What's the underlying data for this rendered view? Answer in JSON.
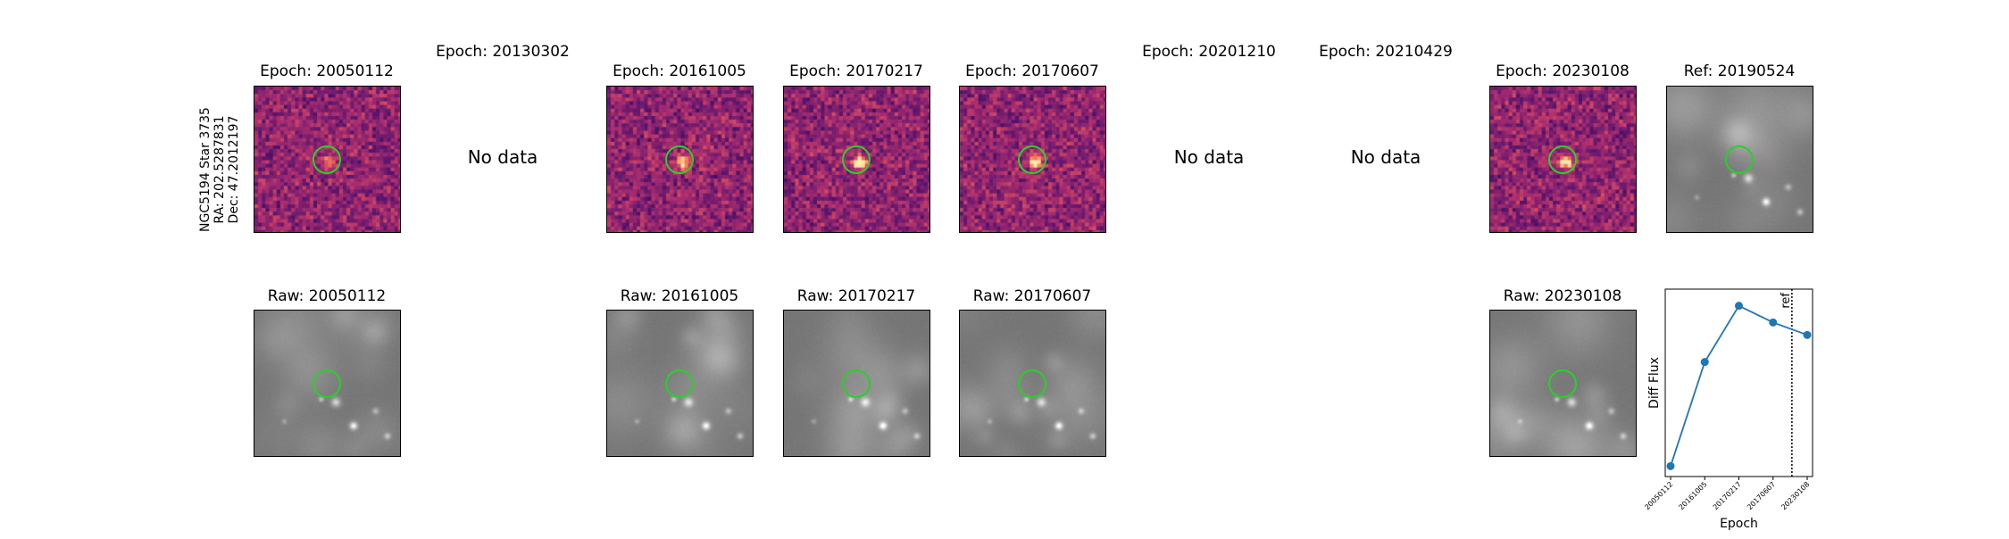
{
  "star_label": {
    "name": "NGC5194 Star 3735",
    "ra": "RA: 202.5287831",
    "dec": "Dec: 47.2012197"
  },
  "diff_row": [
    {
      "title": "Epoch: 20050112",
      "has_data": true,
      "intensity": 0.55
    },
    {
      "title": "Epoch: 20130302",
      "has_data": false,
      "no_data_text": "No data"
    },
    {
      "title": "Epoch: 20161005",
      "has_data": true,
      "intensity": 0.75
    },
    {
      "title": "Epoch: 20170217",
      "has_data": true,
      "intensity": 1.0
    },
    {
      "title": "Epoch: 20170607",
      "has_data": true,
      "intensity": 0.9
    },
    {
      "title": "Epoch: 20201210",
      "has_data": false,
      "no_data_text": "No data"
    },
    {
      "title": "Epoch: 20210429",
      "has_data": false,
      "no_data_text": "No data"
    },
    {
      "title": "Epoch: 20230108",
      "has_data": true,
      "intensity": 0.8
    }
  ],
  "ref_panel": {
    "title": "Ref: 20190524"
  },
  "raw_row": [
    {
      "title": "Raw: 20050112",
      "slot": 0
    },
    {
      "title": "Raw: 20161005",
      "slot": 2
    },
    {
      "title": "Raw: 20170217",
      "slot": 3
    },
    {
      "title": "Raw: 20170607",
      "slot": 4
    },
    {
      "title": "Raw: 20230108",
      "slot": 7
    }
  ],
  "chart_data": {
    "type": "line",
    "title": "",
    "xlabel": "Epoch",
    "ylabel": "Diff Flux",
    "categories": [
      "20050112",
      "20161005",
      "20170217",
      "20170607",
      "20230108"
    ],
    "values": [
      0.05,
      0.55,
      0.82,
      0.74,
      0.68
    ],
    "ylim": [
      0,
      0.9
    ],
    "ref_marker": {
      "label": "ref",
      "position_between": [
        3,
        4
      ]
    },
    "series_color": "#1f77b4",
    "show_y_ticks": false
  },
  "colors": {
    "aperture": "#29d029",
    "diff_cmap": "magma",
    "raw_cmap": "gray"
  }
}
